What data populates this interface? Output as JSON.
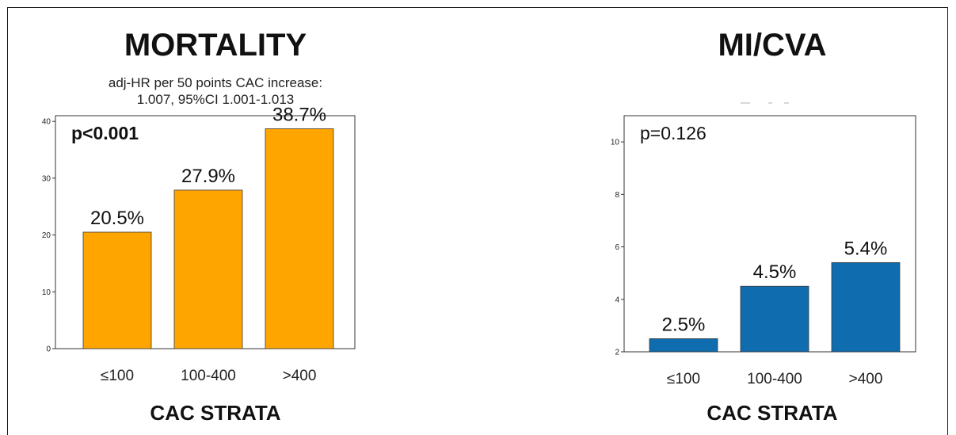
{
  "chart_data": [
    {
      "type": "bar",
      "title": "MORTALITY",
      "subtitle_lines": [
        "adj-HR per 50 points CAC increase:",
        "1.007, 95%CI 1.001-1.013"
      ],
      "p_value": "p<0.001",
      "categories": [
        "≤100",
        "100-400",
        ">400"
      ],
      "values": [
        20.5,
        27.9,
        38.7
      ],
      "value_labels": [
        "20.5%",
        "27.9%",
        "38.7%"
      ],
      "xlabel": "CAC STRATA",
      "ylabel": "",
      "ylim": [
        0,
        41
      ],
      "yticks": [
        0,
        10,
        20,
        30,
        40
      ],
      "color": "#FFA500",
      "grid": false
    },
    {
      "type": "bar",
      "title": "MI/CVA",
      "p_value": "p=0.126",
      "categories": [
        "≤100",
        "100-400",
        ">400"
      ],
      "values": [
        2.5,
        4.5,
        5.4
      ],
      "value_labels": [
        "2.5%",
        "4.5%",
        "5.4%"
      ],
      "xlabel": "CAC STRATA",
      "ylabel": "",
      "ylim": [
        2,
        11
      ],
      "yticks": [
        2,
        4,
        6,
        8,
        10
      ],
      "color": "#0F6CAE",
      "grid": false
    }
  ]
}
